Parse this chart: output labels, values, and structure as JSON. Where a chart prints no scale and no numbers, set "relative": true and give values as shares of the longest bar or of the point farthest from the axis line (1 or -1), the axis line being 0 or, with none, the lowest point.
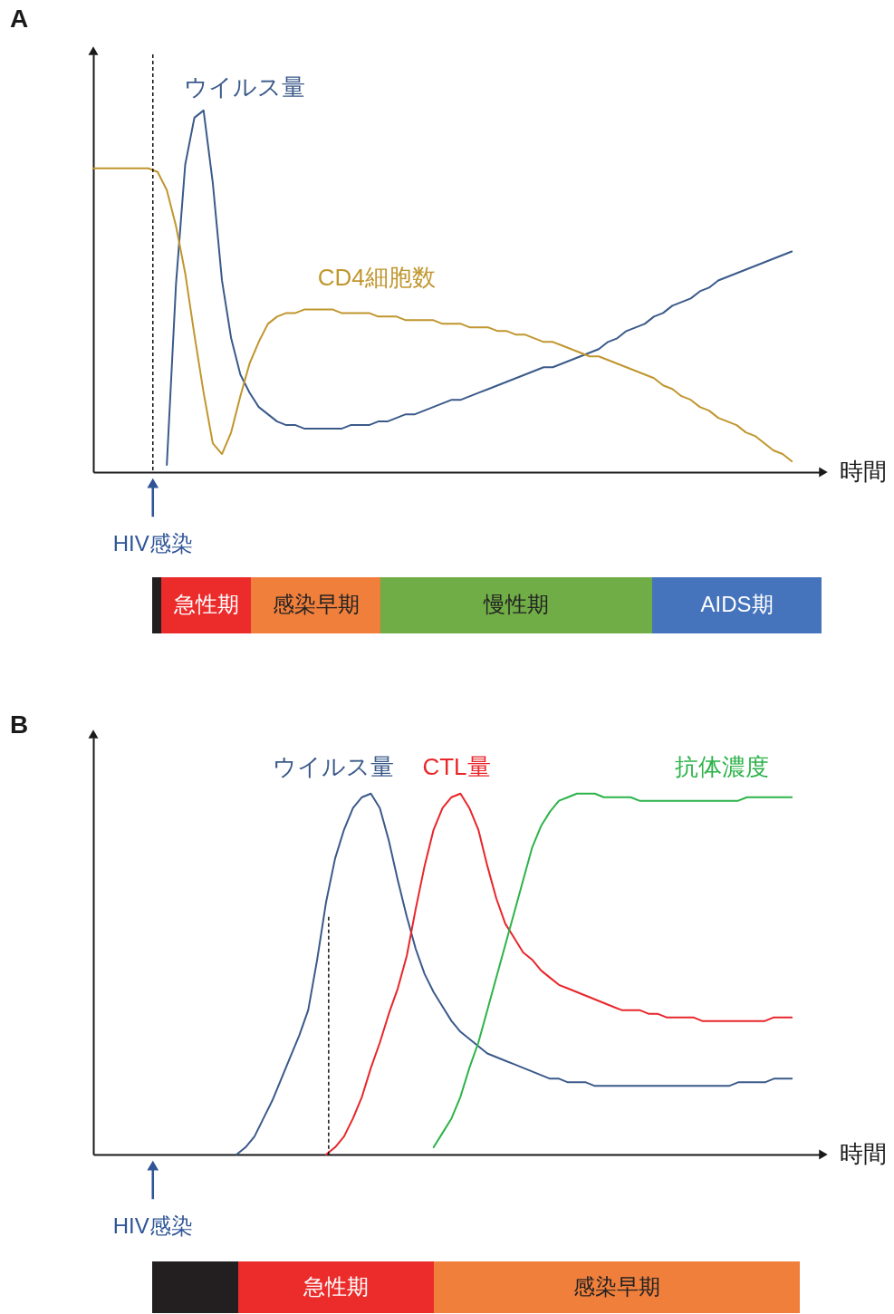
{
  "chart_data": [
    {
      "type": "line",
      "title": "A",
      "xlabel": "時間",
      "relative": true,
      "categories": [
        null,
        null,
        null,
        null,
        null,
        null,
        null,
        null,
        null,
        null,
        null,
        null,
        null,
        null,
        null,
        null,
        null,
        null,
        null,
        null,
        null,
        null,
        null,
        null,
        null,
        null,
        null,
        null,
        null,
        null,
        null,
        null,
        null,
        null,
        null,
        null,
        null,
        null,
        null,
        null,
        null,
        null,
        null,
        null,
        null,
        null,
        null,
        null,
        null,
        null,
        null,
        null,
        null,
        null,
        null,
        null,
        null,
        null,
        null,
        null,
        null,
        null,
        null,
        null,
        null,
        null,
        null,
        null,
        null,
        null,
        null,
        null,
        null,
        null,
        null,
        null,
        null
      ],
      "series": [
        {
          "name": "ウイルス量",
          "color": "#3b5a8a",
          "values": [
            null,
            null,
            null,
            null,
            null,
            null,
            null,
            null,
            0.02,
            0.52,
            0.85,
            0.98,
            1,
            0.8,
            0.53,
            0.37,
            0.27,
            0.22,
            0.18,
            0.16,
            0.14,
            0.13,
            0.13,
            0.12,
            0.12,
            0.12,
            0.12,
            0.12,
            0.13,
            0.13,
            0.13,
            0.14,
            0.14,
            0.15,
            0.16,
            0.16,
            0.17,
            0.18,
            0.19,
            0.2,
            0.2,
            0.21,
            0.22,
            0.23,
            0.24,
            0.25,
            0.26,
            0.27,
            0.28,
            0.29,
            0.29,
            0.3,
            0.31,
            0.32,
            0.33,
            0.34,
            0.36,
            0.37,
            0.39,
            0.4,
            0.41,
            0.43,
            0.44,
            0.46,
            0.47,
            0.48,
            0.5,
            0.51,
            0.53,
            0.54,
            0.55,
            0.56,
            0.57,
            0.58,
            0.59,
            0.6,
            0.61
          ]
        },
        {
          "name": "CD4細胞数",
          "color": "#c0962e",
          "values": [
            0.84,
            0.84,
            0.84,
            0.84,
            0.84,
            0.84,
            0.84,
            0.83,
            0.78,
            0.68,
            0.55,
            0.38,
            0.22,
            0.08,
            0.05,
            0.11,
            0.21,
            0.3,
            0.36,
            0.41,
            0.43,
            0.44,
            0.44,
            0.45,
            0.45,
            0.45,
            0.45,
            0.44,
            0.44,
            0.44,
            0.44,
            0.43,
            0.43,
            0.43,
            0.42,
            0.42,
            0.42,
            0.42,
            0.41,
            0.41,
            0.41,
            0.4,
            0.4,
            0.4,
            0.39,
            0.39,
            0.38,
            0.38,
            0.37,
            0.36,
            0.36,
            0.35,
            0.34,
            0.33,
            0.32,
            0.32,
            0.31,
            0.3,
            0.29,
            0.28,
            0.27,
            0.26,
            0.24,
            0.23,
            0.21,
            0.2,
            0.18,
            0.17,
            0.15,
            0.14,
            0.13,
            0.11,
            0.1,
            0.08,
            0.06,
            0.05,
            0.03
          ]
        }
      ],
      "annotations": [
        "HIV感染"
      ]
    },
    {
      "type": "other",
      "categories": [
        null,
        "急性期",
        "感染早期",
        "慢性期",
        "AIDS期"
      ],
      "colors": [
        "#231f20",
        "#ec2b2b",
        "#f07f3c",
        "#70ad47",
        "#4674bc"
      ]
    },
    {
      "type": "line",
      "title": "B",
      "xlabel": "時間",
      "relative": true,
      "categories": [
        null,
        null,
        null,
        null,
        null,
        null,
        null,
        null,
        null,
        null,
        null,
        null,
        null,
        null,
        null,
        null,
        null,
        null,
        null,
        null,
        null,
        null,
        null,
        null,
        null,
        null,
        null,
        null,
        null,
        null,
        null,
        null,
        null,
        null,
        null,
        null,
        null,
        null,
        null,
        null,
        null,
        null,
        null,
        null,
        null,
        null,
        null,
        null,
        null,
        null,
        null,
        null,
        null,
        null,
        null,
        null,
        null,
        null,
        null,
        null,
        null,
        null,
        null,
        null,
        null,
        null,
        null,
        null,
        null,
        null,
        null,
        null,
        null,
        null,
        null,
        null,
        null,
        null,
        null
      ],
      "series": [
        {
          "name": "ウイルス量",
          "color": "#3b5a8a",
          "values": [
            null,
            null,
            null,
            null,
            null,
            null,
            null,
            null,
            null,
            null,
            null,
            null,
            null,
            null,
            null,
            null,
            0,
            0.02,
            0.05,
            0.1,
            0.15,
            0.21,
            0.27,
            0.33,
            0.4,
            0.54,
            0.7,
            0.82,
            0.9,
            0.96,
            0.99,
            1,
            0.96,
            0.87,
            0.76,
            0.66,
            0.57,
            0.5,
            0.45,
            0.41,
            0.37,
            0.34,
            0.32,
            0.3,
            0.28,
            0.27,
            0.26,
            0.25,
            0.24,
            0.23,
            0.22,
            0.21,
            0.21,
            0.2,
            0.2,
            0.2,
            0.19,
            0.19,
            0.19,
            0.19,
            0.19,
            0.19,
            0.19,
            0.19,
            0.19,
            0.19,
            0.19,
            0.19,
            0.19,
            0.19,
            0.19,
            0.19,
            0.2,
            0.2,
            0.2,
            0.2,
            0.21,
            0.21,
            0.21
          ]
        },
        {
          "name": "CTL量",
          "color": "#e8262a",
          "values": [
            null,
            null,
            null,
            null,
            null,
            null,
            null,
            null,
            null,
            null,
            null,
            null,
            null,
            null,
            null,
            null,
            null,
            null,
            null,
            null,
            null,
            null,
            null,
            null,
            null,
            null,
            0,
            0.02,
            0.05,
            0.1,
            0.16,
            0.24,
            0.31,
            0.39,
            0.46,
            0.55,
            0.68,
            0.8,
            0.9,
            0.96,
            0.99,
            1,
            0.96,
            0.9,
            0.8,
            0.71,
            0.64,
            0.6,
            0.56,
            0.54,
            0.51,
            0.49,
            0.47,
            0.46,
            0.45,
            0.44,
            0.43,
            0.42,
            0.41,
            0.4,
            0.4,
            0.4,
            0.39,
            0.39,
            0.38,
            0.38,
            0.38,
            0.38,
            0.37,
            0.37,
            0.37,
            0.37,
            0.37,
            0.37,
            0.37,
            0.37,
            0.38,
            0.38,
            0.38
          ]
        },
        {
          "name": "抗体濃度",
          "color": "#2db34a",
          "values": [
            null,
            null,
            null,
            null,
            null,
            null,
            null,
            null,
            null,
            null,
            null,
            null,
            null,
            null,
            null,
            null,
            null,
            null,
            null,
            null,
            null,
            null,
            null,
            null,
            null,
            null,
            null,
            null,
            null,
            null,
            null,
            null,
            null,
            null,
            null,
            null,
            null,
            null,
            0.02,
            0.06,
            0.1,
            0.16,
            0.24,
            0.31,
            0.4,
            0.49,
            0.58,
            0.67,
            0.76,
            0.85,
            0.91,
            0.95,
            0.98,
            0.99,
            1,
            1,
            1,
            0.99,
            0.99,
            0.99,
            0.99,
            0.98,
            0.98,
            0.98,
            0.98,
            0.98,
            0.98,
            0.98,
            0.98,
            0.98,
            0.98,
            0.98,
            0.98,
            0.99,
            0.99,
            0.99,
            0.99,
            0.99,
            0.99
          ]
        }
      ],
      "annotations": [
        "HIV感染"
      ]
    },
    {
      "type": "other",
      "categories": [
        null,
        "急性期",
        "感染早期"
      ],
      "colors": [
        "#231f20",
        "#ec2b2b",
        "#f07f3c"
      ]
    }
  ]
}
